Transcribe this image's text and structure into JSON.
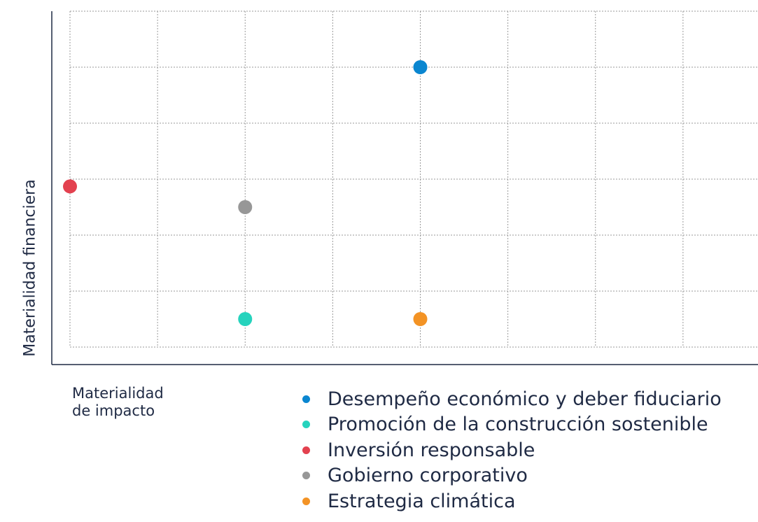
{
  "chart_data": {
    "type": "scatter",
    "xlabel_lines": [
      "Materialidad",
      "de impacto"
    ],
    "ylabel": "Materialidad financiera",
    "xlim": [
      0,
      8
    ],
    "ylim": [
      0,
      6
    ],
    "grid": true,
    "tick_labels": false,
    "legend_placement": "bottom",
    "series": [
      {
        "name": "Desempeño económico y deber fiduciario",
        "color": "#0a86d0",
        "x": 4,
        "y": 5
      },
      {
        "name": "Promoción de la construcción sostenible",
        "color": "#26d3bd",
        "x": 2,
        "y": 0.5
      },
      {
        "name": "Inversión responsable",
        "color": "#e3414f",
        "x": 0,
        "y": 2.87
      },
      {
        "name": "Gobierno corporativo",
        "color": "#979797",
        "x": 2,
        "y": 2.5
      },
      {
        "name": "Estrategia climática",
        "color": "#f39325",
        "x": 4,
        "y": 0.5
      }
    ]
  }
}
